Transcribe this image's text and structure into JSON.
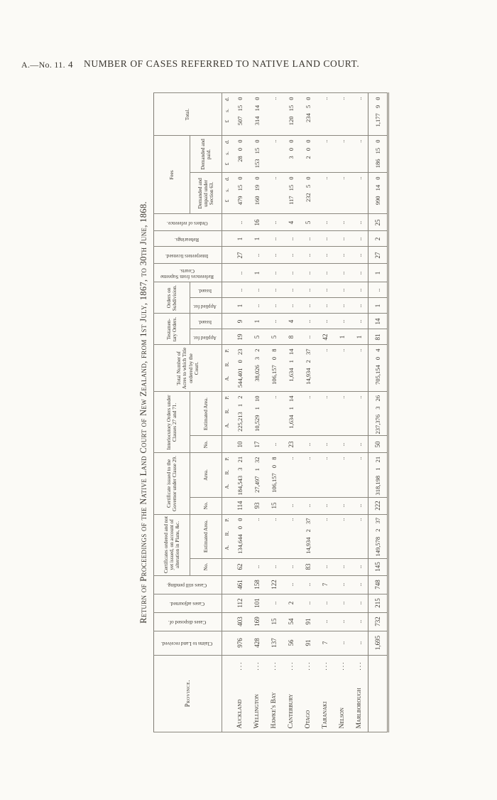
{
  "page": {
    "doc_ref": "A.—No. 11.",
    "page_number": "4",
    "header_title": "NUMBER OF CASES REFERRED TO NATIVE LAND COURT.",
    "table_title": "Return of Proceedings of the Native Land Court of New Zealand, from 1st July, 1867, to 30th June, 1868."
  },
  "table": {
    "stub_header": "Province.",
    "headers": {
      "claims": "Claims to Land received.",
      "disposed": "Cases disposed of.",
      "adjourned": "Cases adjourned.",
      "pending": "Cases still pending.",
      "cert_ordered": "Certificates ordered and not yet issued, on account of alteration in Plans, &c.",
      "cert_ordered_no": "No.",
      "cert_ordered_area": "Estimated Area.",
      "cert_issued": "Certificate issued to the Governor under Clause 29.",
      "cert_issued_no": "No.",
      "cert_issued_area": "Area.",
      "interlocutory": "Interlocutory Orders under Clauses 27 and 71.",
      "interlocutory_no": "No.",
      "interlocutory_area": "Estimated Area.",
      "total_acres": "Total Number of Acres to which Title ordered by the Court.",
      "testamentary": "Testamen- tary Orders.",
      "testamentary_applied": "Applied for.",
      "testamentary_issued": "Issued.",
      "subdivision": "Orders on Subdivision.",
      "subdivision_applied": "Applied for.",
      "subdivision_issued": "Issued.",
      "ref_supreme": "References from Supreme Courts.",
      "interpreters": "Interpreters licensed.",
      "rehearings": "Rehearings.",
      "orders_ref": "Orders of reference.",
      "fees": "Fees",
      "fees_unpaid": "Demanded and unpaid under Section 63.",
      "fees_paid": "Demanded and paid.",
      "total": "Total."
    },
    "unit_row": [
      "",
      "",
      "",
      "",
      "",
      "",
      "A. R. P.",
      "",
      "A. R. P.",
      "",
      "A. R. P.",
      "A. R. P.",
      "",
      "",
      "",
      "",
      "",
      "",
      "",
      "",
      "£ s. d.",
      "£ s. d.",
      "£ s. d."
    ],
    "rows": [
      [
        "Auckland",
        "976",
        "403",
        "112",
        "461",
        "62",
        "134,644 0 0",
        "114",
        "184,543 3 21",
        "10",
        "225,213 1 2",
        "544,401 0 23",
        "19",
        "9",
        "1",
        "..",
        "..",
        "27",
        "1",
        "..",
        "479 15 0",
        "28 0 0",
        "507 15 0"
      ],
      [
        "Wellington",
        "428",
        "169",
        "101",
        "158",
        "..",
        "..",
        "93",
        "27,497 1 32",
        "17",
        "10,529 1 10",
        "38,026 3 2",
        "5",
        "1",
        "..",
        "..",
        "1",
        "..",
        "1",
        "16",
        "160 19 0",
        "153 15 0",
        "314 14 0"
      ],
      [
        "Hawke's Bay",
        "137",
        "15",
        "..",
        "122",
        "..",
        "..",
        "15",
        "106,157 0 8",
        "..",
        "..",
        "106,157 0 8",
        "5",
        "..",
        "..",
        "..",
        "..",
        "..",
        "..",
        "..",
        "..",
        "..",
        ".."
      ],
      [
        "Canterbury",
        "56",
        "54",
        "2",
        "..",
        "..",
        "..",
        "..",
        "..",
        "23",
        "1,634 1 14",
        "1,634 1 14",
        "8",
        "4",
        "..",
        "..",
        "..",
        "..",
        "..",
        "4",
        "117 15 0",
        "3 0 0",
        "120 15 0"
      ],
      [
        "Otago",
        "91",
        "91",
        "..",
        "..",
        "83",
        "14,934 2 37",
        "..",
        "..",
        "..",
        "..",
        "14,934 2 37",
        "..",
        "..",
        "..",
        "..",
        "..",
        "..",
        "..",
        "5",
        "232 5 0",
        "2 0 0",
        "234 5 0"
      ],
      [
        "Taranaki",
        "7",
        "..",
        "..",
        "7",
        "..",
        "..",
        "..",
        "..",
        "..",
        "..",
        "..",
        "42",
        "..",
        "..",
        "..",
        "..",
        "..",
        "..",
        "..",
        "..",
        "..",
        ".."
      ],
      [
        "Nelson",
        "..",
        "..",
        "..",
        "..",
        "..",
        "..",
        "..",
        "..",
        "..",
        "..",
        "..",
        "1",
        "..",
        "..",
        "..",
        "..",
        "..",
        "..",
        "..",
        "..",
        "..",
        ".."
      ],
      [
        "Marlborough",
        "..",
        "..",
        "..",
        "..",
        "..",
        "..",
        "..",
        "..",
        "..",
        "..",
        "..",
        "1",
        "..",
        "..",
        "..",
        "..",
        "..",
        "..",
        "..",
        "..",
        "..",
        ".."
      ]
    ],
    "total_row": [
      "",
      "1,695",
      "732",
      "215",
      "748",
      "145",
      "149,578 2 37",
      "222",
      "318,198 1 21",
      "50",
      "237,376 3 26",
      "705,154 0 4",
      "81",
      "14",
      "1",
      "..",
      "1",
      "27",
      "2",
      "25",
      "990 14 0",
      "186 15 0",
      "1,177 9 0"
    ]
  }
}
